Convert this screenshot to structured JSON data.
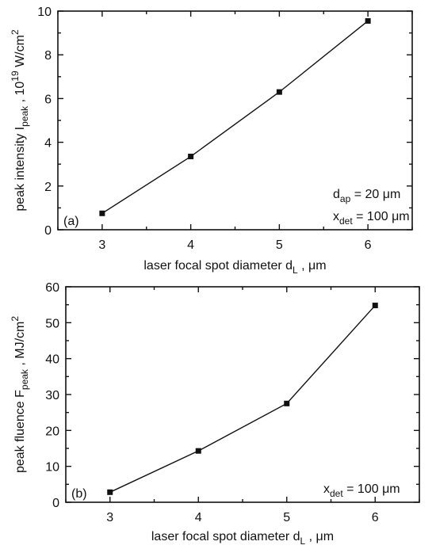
{
  "chart_data": [
    {
      "type": "line",
      "panel_label": "(a)",
      "x": [
        3,
        4,
        5,
        6
      ],
      "series": [
        {
          "values": [
            0.75,
            3.35,
            6.3,
            9.55
          ]
        }
      ],
      "xlabel": "laser focal spot diameter d",
      "xlabel_sub": "L",
      "xlabel_unit": ", μm",
      "ylabel_parts": [
        "peak intensity I",
        "peak",
        " , 10",
        "19",
        " W/cm",
        "2"
      ],
      "xlim": [
        2.5,
        6.5
      ],
      "ylim": [
        0,
        10
      ],
      "xticks": [
        3,
        4,
        5,
        6
      ],
      "yticks": [
        0,
        2,
        4,
        6,
        8,
        10
      ],
      "annotations": [
        {
          "main": "d",
          "sub": "ap",
          "rest": " = 20 μm"
        },
        {
          "main": "x",
          "sub": "det",
          "rest": " = 100 μm"
        }
      ],
      "grid": false
    },
    {
      "type": "line",
      "panel_label": "(b)",
      "x": [
        3,
        4,
        5,
        6
      ],
      "series": [
        {
          "values": [
            2.8,
            14.3,
            27.5,
            54.8
          ]
        }
      ],
      "xlabel": "laser focal spot diameter d",
      "xlabel_sub": "L",
      "xlabel_unit": ", μm",
      "ylabel_parts": [
        "peak fluence F",
        "peak",
        " , MJ/cm",
        "2"
      ],
      "xlim": [
        2.5,
        6.5
      ],
      "ylim": [
        0,
        60
      ],
      "xticks": [
        3,
        4,
        5,
        6
      ],
      "yticks": [
        0,
        10,
        20,
        30,
        40,
        50,
        60
      ],
      "annotations": [
        {
          "main": "x",
          "sub": "det",
          "rest": " = 100 μm"
        }
      ],
      "grid": false
    }
  ]
}
